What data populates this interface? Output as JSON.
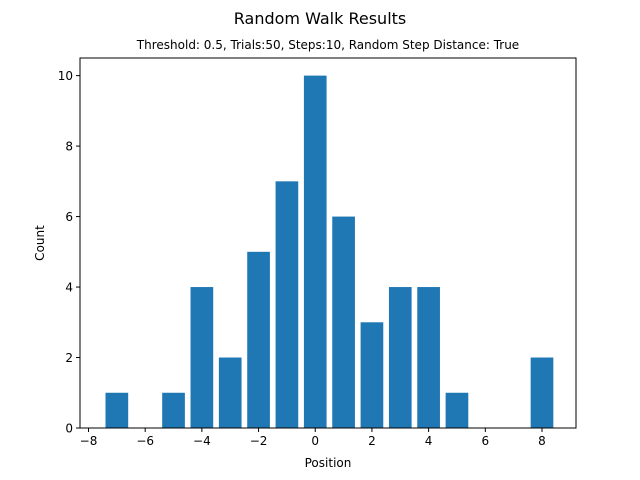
{
  "chart_data": {
    "type": "bar",
    "title": "Random Walk Results",
    "subtitle": "Threshold: 0.5, Trials:50, Steps:10, Random Step Distance: True",
    "xlabel": "Position",
    "ylabel": "Count",
    "x": [
      -7,
      -5,
      -4,
      -3,
      -2,
      -1,
      0,
      1,
      2,
      3,
      4,
      5,
      8
    ],
    "values": [
      1,
      1,
      4,
      2,
      5,
      7,
      10,
      6,
      3,
      4,
      4,
      1,
      2
    ],
    "xlim": [
      -8.3,
      9.2
    ],
    "ylim": [
      0,
      10.5
    ],
    "xticks": [
      -8,
      -6,
      -4,
      -2,
      0,
      2,
      4,
      6,
      8
    ],
    "xtick_labels": [
      "−8",
      "−6",
      "−4",
      "−2",
      "0",
      "2",
      "4",
      "6",
      "8"
    ],
    "yticks": [
      0,
      2,
      4,
      6,
      8,
      10
    ],
    "ytick_labels": [
      "0",
      "2",
      "4",
      "6",
      "8",
      "10"
    ],
    "bar_color": "#1f77b4",
    "grid": false
  }
}
